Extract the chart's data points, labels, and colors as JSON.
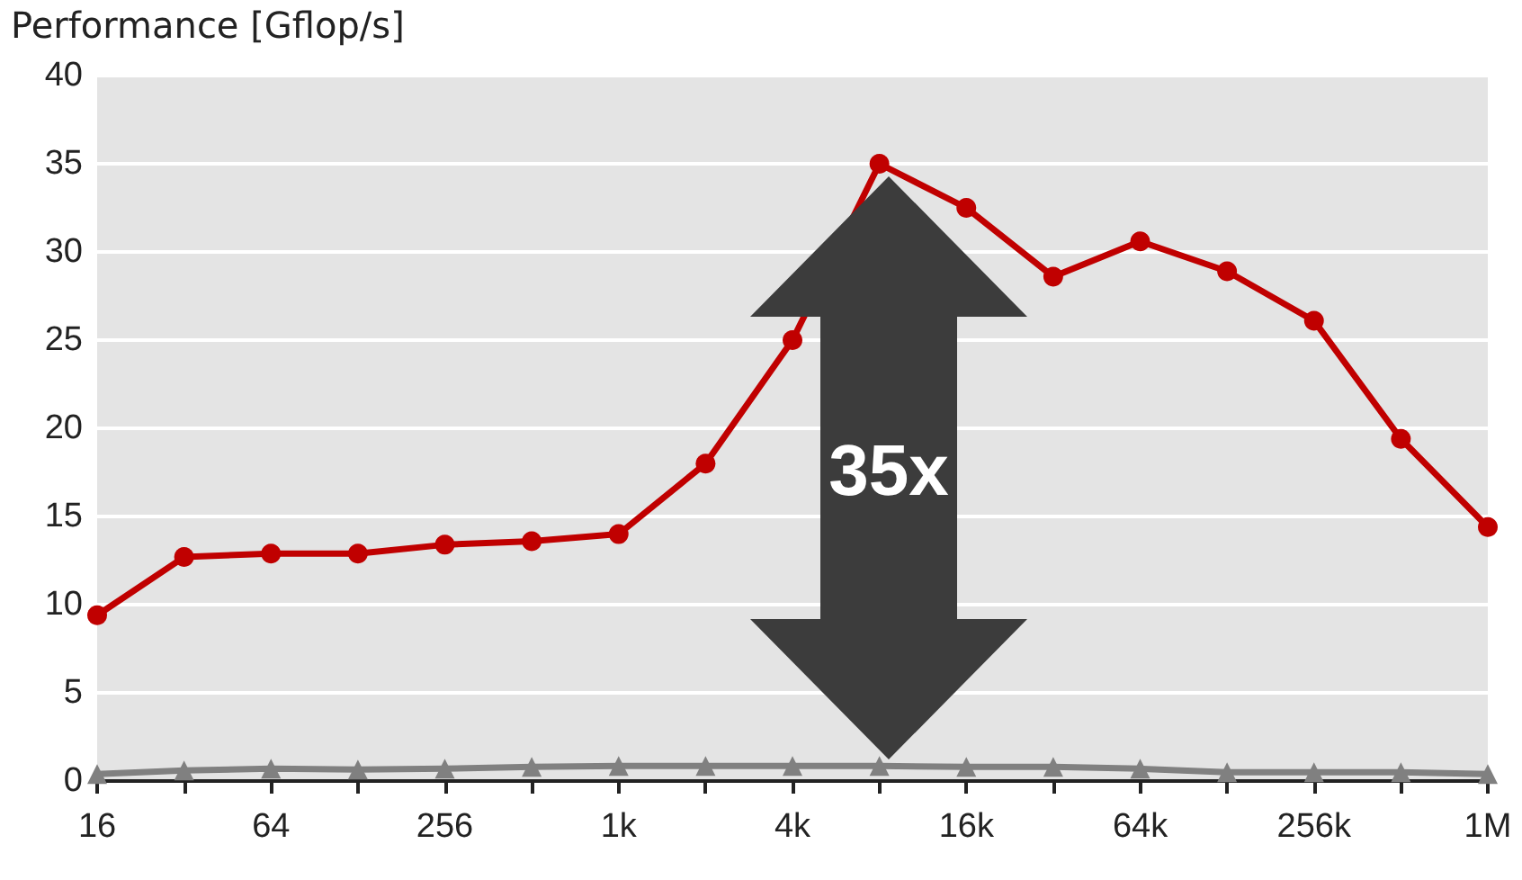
{
  "chart_data": {
    "type": "line",
    "ylabel": "Performance [Gflop/s]",
    "categories": [
      "16",
      null,
      "64",
      null,
      "256",
      null,
      "1k",
      null,
      "4k",
      null,
      "16k",
      null,
      "64k",
      null,
      "256k",
      null,
      "1M"
    ],
    "series": [
      {
        "color": "#c00000",
        "marker": "circle",
        "values": [
          9.4,
          12.7,
          12.9,
          12.9,
          13.4,
          13.6,
          14.0,
          18.0,
          25.0,
          35.0,
          32.5,
          28.6,
          30.6,
          28.9,
          26.1,
          19.4,
          14.4
        ]
      },
      {
        "color": "#808080",
        "marker": "triangle",
        "values": [
          0.4,
          0.6,
          0.7,
          0.65,
          0.7,
          0.8,
          0.85,
          0.85,
          0.85,
          0.85,
          0.8,
          0.8,
          0.7,
          0.5,
          0.5,
          0.5,
          0.4
        ]
      }
    ],
    "ylim": [
      0,
      40
    ],
    "yticks": [
      0,
      5,
      10,
      15,
      20,
      25,
      30,
      35,
      40
    ],
    "grid": "y",
    "annotations": [
      "35x"
    ]
  }
}
